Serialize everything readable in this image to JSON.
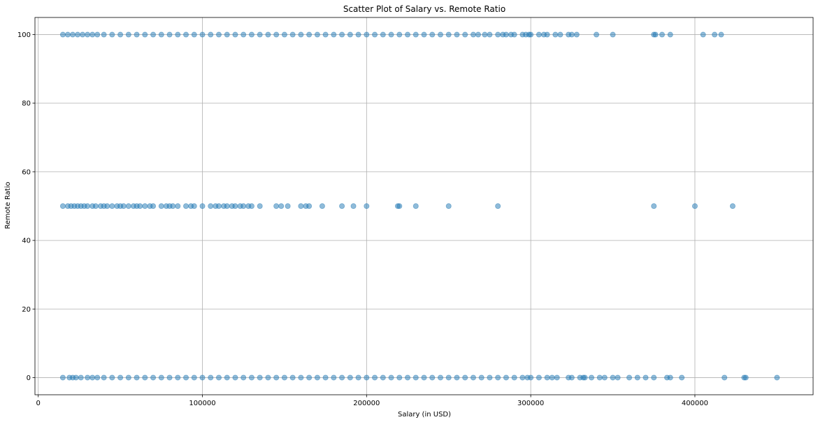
{
  "chart_data": {
    "type": "scatter",
    "title": "Scatter Plot of Salary vs. Remote Ratio",
    "xlabel": "Salary (in USD)",
    "ylabel": "Remote Ratio",
    "xlim": [
      -2000,
      472000
    ],
    "ylim": [
      -5,
      105
    ],
    "xticks": [
      0,
      100000,
      200000,
      300000,
      400000
    ],
    "xtick_labels": [
      "0",
      "100000",
      "200000",
      "300000",
      "400000"
    ],
    "yticks": [
      0,
      20,
      40,
      60,
      80,
      100
    ],
    "ytick_labels": [
      "0",
      "20",
      "40",
      "60",
      "80",
      "100"
    ],
    "grid": true,
    "marker_color": "#1f77b4",
    "marker_alpha": 0.5,
    "series": [
      {
        "x": [
          15000,
          18000,
          21000,
          24000,
          27000,
          30000,
          33000,
          36000,
          40000,
          45000,
          50000,
          55000,
          60000,
          65000,
          70000,
          75000,
          80000,
          85000,
          90000,
          95000,
          100000,
          105000,
          110000,
          115000,
          120000,
          125000,
          130000,
          135000,
          140000,
          145000,
          150000,
          155000,
          160000,
          165000,
          170000,
          175000,
          180000,
          185000,
          190000,
          195000,
          200000,
          205000,
          210000,
          215000,
          220000,
          225000,
          230000,
          235000,
          240000,
          245000,
          250000,
          255000,
          260000,
          265000,
          268000,
          272000,
          275000,
          280000,
          283000,
          285000,
          288000,
          290000,
          295000,
          297000,
          299000,
          300000,
          305000,
          308000,
          310000,
          315000,
          318000,
          323000,
          325000,
          328000,
          340000,
          350000,
          375000,
          376000,
          380000,
          385000,
          405000,
          412000,
          416000
        ],
        "y": [
          100,
          100,
          100,
          100,
          100,
          100,
          100,
          100,
          100,
          100,
          100,
          100,
          100,
          100,
          100,
          100,
          100,
          100,
          100,
          100,
          100,
          100,
          100,
          100,
          100,
          100,
          100,
          100,
          100,
          100,
          100,
          100,
          100,
          100,
          100,
          100,
          100,
          100,
          100,
          100,
          100,
          100,
          100,
          100,
          100,
          100,
          100,
          100,
          100,
          100,
          100,
          100,
          100,
          100,
          100,
          100,
          100,
          100,
          100,
          100,
          100,
          100,
          100,
          100,
          100,
          100,
          100,
          100,
          100,
          100,
          100,
          100,
          100,
          100,
          100,
          100,
          100,
          100,
          100,
          100,
          100,
          100,
          100
        ]
      },
      {
        "x": [
          15000,
          18000,
          20000,
          22000,
          24000,
          26000,
          28000,
          30000,
          33000,
          35000,
          38000,
          40000,
          42000,
          45000,
          48000,
          50000,
          52000,
          55000,
          58000,
          60000,
          62000,
          65000,
          68000,
          70000,
          75000,
          78000,
          80000,
          82000,
          85000,
          90000,
          93000,
          95000,
          100000,
          105000,
          108000,
          110000,
          113000,
          115000,
          118000,
          120000,
          123000,
          125000,
          128000,
          130000,
          135000,
          145000,
          148000,
          152000,
          160000,
          163000,
          165000,
          173000,
          185000,
          192000,
          200000,
          219000,
          220000,
          230000,
          250000,
          280000,
          375000,
          400000,
          423000
        ],
        "y": [
          50,
          50,
          50,
          50,
          50,
          50,
          50,
          50,
          50,
          50,
          50,
          50,
          50,
          50,
          50,
          50,
          50,
          50,
          50,
          50,
          50,
          50,
          50,
          50,
          50,
          50,
          50,
          50,
          50,
          50,
          50,
          50,
          50,
          50,
          50,
          50,
          50,
          50,
          50,
          50,
          50,
          50,
          50,
          50,
          50,
          50,
          50,
          50,
          50,
          50,
          50,
          50,
          50,
          50,
          50,
          50,
          50,
          50,
          50,
          50,
          50,
          50,
          50
        ]
      },
      {
        "x": [
          15000,
          19000,
          21000,
          23000,
          26000,
          30000,
          33000,
          36000,
          40000,
          45000,
          50000,
          55000,
          60000,
          65000,
          70000,
          75000,
          80000,
          85000,
          90000,
          95000,
          100000,
          105000,
          110000,
          115000,
          120000,
          125000,
          130000,
          135000,
          140000,
          145000,
          150000,
          155000,
          160000,
          165000,
          170000,
          175000,
          180000,
          185000,
          190000,
          195000,
          200000,
          205000,
          210000,
          215000,
          220000,
          225000,
          230000,
          235000,
          240000,
          245000,
          250000,
          255000,
          260000,
          265000,
          270000,
          275000,
          280000,
          285000,
          290000,
          295000,
          298000,
          300000,
          305000,
          310000,
          313000,
          316000,
          323000,
          325000,
          330000,
          332000,
          333000,
          337000,
          342000,
          345000,
          350000,
          353000,
          360000,
          365000,
          370000,
          375000,
          383000,
          385000,
          392000,
          418000,
          430000,
          431000,
          450000
        ],
        "y": [
          0,
          0,
          0,
          0,
          0,
          0,
          0,
          0,
          0,
          0,
          0,
          0,
          0,
          0,
          0,
          0,
          0,
          0,
          0,
          0,
          0,
          0,
          0,
          0,
          0,
          0,
          0,
          0,
          0,
          0,
          0,
          0,
          0,
          0,
          0,
          0,
          0,
          0,
          0,
          0,
          0,
          0,
          0,
          0,
          0,
          0,
          0,
          0,
          0,
          0,
          0,
          0,
          0,
          0,
          0,
          0,
          0,
          0,
          0,
          0,
          0,
          0,
          0,
          0,
          0,
          0,
          0,
          0,
          0,
          0,
          0,
          0,
          0,
          0,
          0,
          0,
          0,
          0,
          0,
          0,
          0,
          0,
          0,
          0,
          0,
          0,
          0
        ]
      }
    ]
  }
}
